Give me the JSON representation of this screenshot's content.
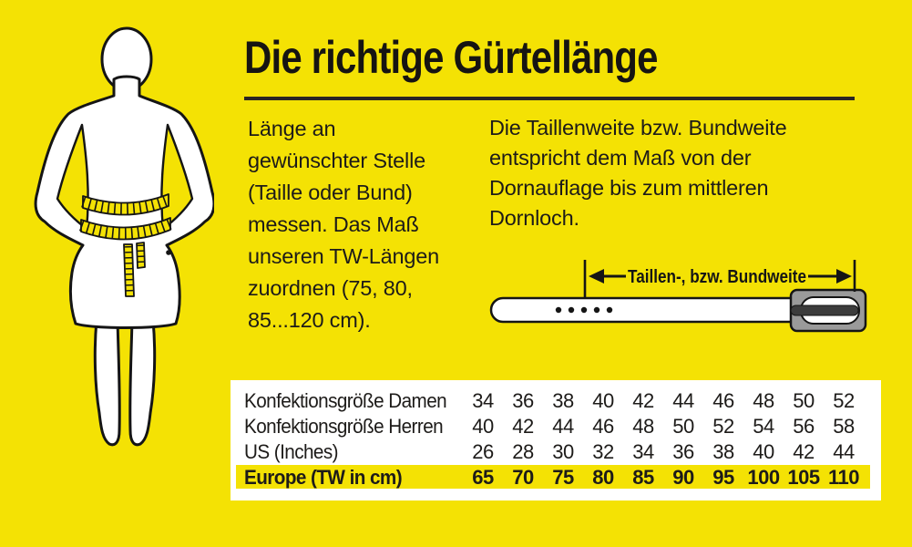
{
  "colors": {
    "background": "#F4E204",
    "ink": "#1D1B19",
    "panel": "#FFFFFF",
    "buckle_gray": "#9A9A9A",
    "prong_dark": "#3C3C3C",
    "tape_yellow": "#F4E204"
  },
  "title": "Die richtige Gürtellänge",
  "left_instruction": "Länge an\ngewünschter Stelle\n(Taille oder Bund)\nmessen. Das Maß\nunseren TW-Längen\nzuordnen (75, 80,\n85...120 cm).",
  "right_instruction": "Die Taillenweite bzw. Bundweite\nentspricht dem Maß von der\nDornauflage bis zum mittleren\nDornloch.",
  "belt_diagram": {
    "arrow_label": "Taillen-, bzw. Bundweite"
  },
  "size_table": {
    "rows": [
      {
        "label": "Konfektionsgröße Damen",
        "highlight": false,
        "values": [
          "34",
          "36",
          "38",
          "40",
          "42",
          "44",
          "46",
          "48",
          "50",
          "52"
        ]
      },
      {
        "label": "Konfektionsgröße Herren",
        "highlight": false,
        "values": [
          "40",
          "42",
          "44",
          "46",
          "48",
          "50",
          "52",
          "54",
          "56",
          "58"
        ]
      },
      {
        "label": "US (Inches)",
        "highlight": false,
        "values": [
          "26",
          "28",
          "30",
          "32",
          "34",
          "36",
          "38",
          "40",
          "42",
          "44"
        ]
      },
      {
        "label": "Europe (TW in cm)",
        "highlight": true,
        "values": [
          "65",
          "70",
          "75",
          "80",
          "85",
          "90",
          "95",
          "100",
          "105",
          "110"
        ]
      }
    ]
  }
}
